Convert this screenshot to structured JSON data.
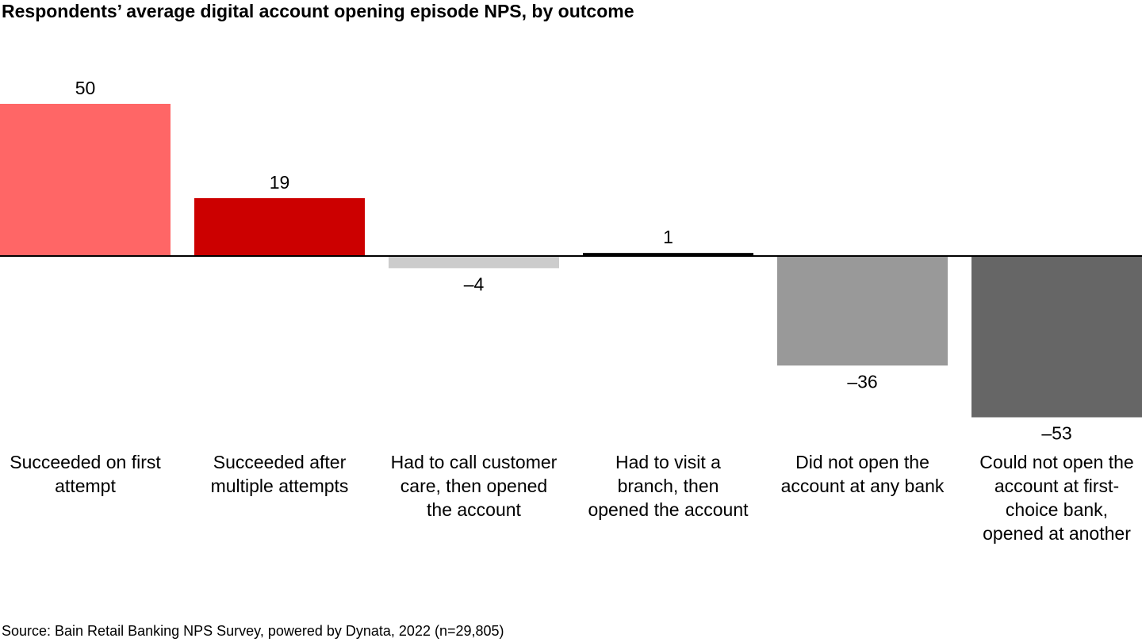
{
  "chart_data": {
    "type": "bar",
    "title": "Respondents’ average digital account opening episode NPS, by outcome",
    "categories": [
      "Succeeded on first attempt",
      "Succeeded after multiple attempts",
      "Had to call customer care, then opened the account",
      "Had to visit a branch, then opened the account",
      "Did not open the account at any bank",
      "Could not open the account at first-choice bank, opened at another"
    ],
    "values": [
      50,
      19,
      -4,
      1,
      -36,
      -53
    ],
    "value_labels": [
      "50",
      "19",
      "–4",
      "1",
      "–36",
      "–53"
    ],
    "colors": [
      "#ff6666",
      "#cc0000",
      "#cccccc",
      "#000000",
      "#999999",
      "#666666"
    ],
    "ylim": [
      -53,
      50
    ],
    "source": "Source: Bain Retail Banking NPS Survey, powered by Dynata, 2022 (n=29,805)"
  }
}
